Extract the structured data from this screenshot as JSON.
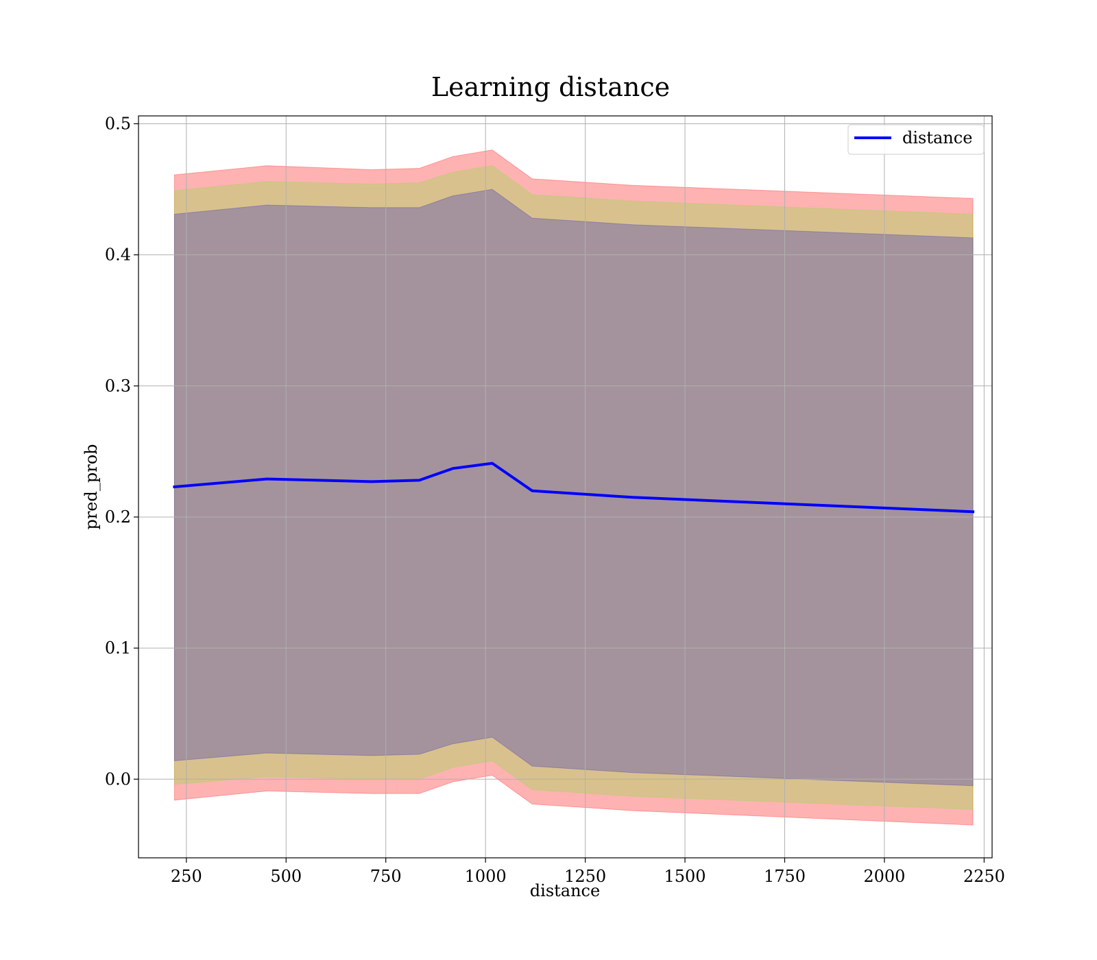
{
  "chart_data": {
    "type": "line",
    "title": "Learning distance",
    "xlabel": "distance",
    "ylabel": "pred_prob",
    "xlim": [
      130,
      2270
    ],
    "ylim": [
      -0.06,
      0.506
    ],
    "xticks": [
      250,
      500,
      750,
      1000,
      1250,
      1500,
      1750,
      2000,
      2250
    ],
    "xtick_labels": [
      "250",
      "500",
      "750",
      "1000",
      "1250",
      "1500",
      "1750",
      "2000",
      "2250"
    ],
    "yticks": [
      0.0,
      0.1,
      0.2,
      0.3,
      0.4,
      0.5
    ],
    "ytick_labels": [
      "0.0",
      "0.1",
      "0.2",
      "0.3",
      "0.4",
      "0.5"
    ],
    "grid": true,
    "legend_position": "top-right",
    "x": [
      220,
      452,
      714,
      834,
      918,
      1017,
      1117,
      1369,
      2222
    ],
    "series": [
      {
        "name": "distance",
        "color": "#0000ff",
        "values": [
          0.223,
          0.229,
          0.227,
          0.228,
          0.237,
          0.241,
          0.22,
          0.215,
          0.204
        ]
      }
    ],
    "bands": [
      {
        "color": "#ff0000",
        "opacity": 0.3,
        "lower": [
          -0.016,
          -0.009,
          -0.011,
          -0.011,
          -0.002,
          0.003,
          -0.019,
          -0.024,
          -0.035
        ],
        "upper": [
          0.461,
          0.468,
          0.465,
          0.466,
          0.475,
          0.48,
          0.458,
          0.453,
          0.443
        ]
      },
      {
        "color": "#40ff00",
        "opacity": 0.2,
        "lower": [
          -0.004,
          0.002,
          0.0,
          0.0,
          0.009,
          0.014,
          -0.008,
          -0.013,
          -0.023
        ],
        "upper": [
          0.449,
          0.456,
          0.454,
          0.455,
          0.463,
          0.468,
          0.446,
          0.441,
          0.431
        ]
      },
      {
        "color": "#2a2bbd",
        "opacity": 0.3,
        "lower": [
          0.014,
          0.02,
          0.018,
          0.019,
          0.027,
          0.032,
          0.01,
          0.005,
          -0.005
        ],
        "upper": [
          0.431,
          0.438,
          0.436,
          0.436,
          0.445,
          0.45,
          0.428,
          0.423,
          0.413
        ]
      }
    ]
  }
}
